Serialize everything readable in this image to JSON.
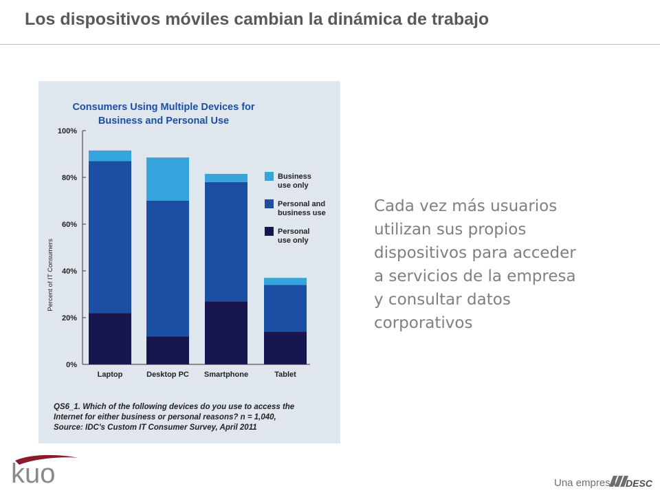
{
  "slide": {
    "title": "Los dispositivos móviles cambian la dinámica de trabajo",
    "body": "Cada vez más usuarios\nutilizan sus propios\ndispositivos para acceder\na servicios de la empresa\ny consultar datos\ncorporativos"
  },
  "footer": {
    "logo_text": "kuo",
    "tagline": "Una empresa",
    "brand_text": "DESC"
  },
  "chart_data": {
    "type": "bar",
    "stacked": true,
    "title": "Consumers Using Multiple Devices for\nBusiness and Personal Use",
    "ylabel": "Percent of IT Consumers",
    "xlabel": "",
    "categories": [
      "Laptop",
      "Desktop PC",
      "Smartphone",
      "Tablet"
    ],
    "ylim": [
      0,
      100
    ],
    "yticks": [
      "0%",
      "20%",
      "40%",
      "60%",
      "80%",
      "100%"
    ],
    "series": [
      {
        "name": "Personal\nuse only",
        "color": "#17164f",
        "values": [
          22,
          12,
          27,
          14
        ]
      },
      {
        "name": "Personal and\nbusiness use",
        "color": "#1b4fa3",
        "values": [
          65,
          58,
          51,
          20
        ]
      },
      {
        "name": "Business\nuse only",
        "color": "#37a5dd",
        "values": [
          4.5,
          18.5,
          3.5,
          3
        ]
      }
    ],
    "legend_position": "right",
    "legend_order": [
      2,
      1,
      0
    ],
    "grid": false,
    "footnote": "QS6_1. Which of the following devices do you use to access the\nInternet for either business or personal reasons? n = 1,040,\nSource: IDC's Custom IT Consumer Survey, April 2011",
    "colors": {
      "panel_bg": "#dfe6ee",
      "title": "#1b4fa3",
      "text": "#222222"
    }
  }
}
